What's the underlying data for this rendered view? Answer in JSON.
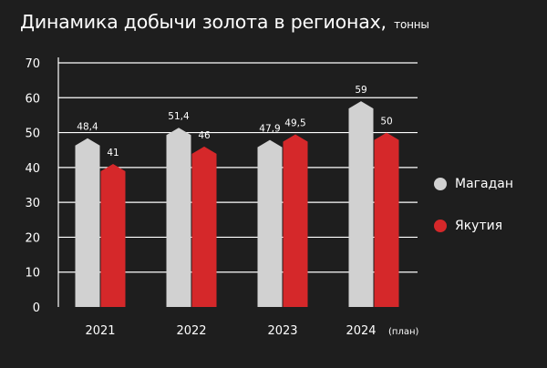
{
  "title": "Динамика добычи золота в регионах,",
  "title_unit": "тонны",
  "legend_items": [
    {
      "label": "Магадан",
      "color": "#d1d1d1"
    },
    {
      "label": "Якутия",
      "color": "#d5282a"
    }
  ],
  "chart_data": {
    "type": "bar",
    "categories": [
      "2021",
      "2022",
      "2023",
      "2024"
    ],
    "category_notes": [
      "",
      "",
      "",
      "(план)"
    ],
    "series": [
      {
        "name": "Магадан",
        "color": "#d1d1d1",
        "values": [
          48.4,
          51.4,
          47.9,
          59
        ],
        "labels": [
          "48,4",
          "51,4",
          "47,9",
          "59"
        ]
      },
      {
        "name": "Якутия",
        "color": "#d5282a",
        "values": [
          41,
          46,
          49.5,
          50
        ],
        "labels": [
          "41",
          "46",
          "49,5",
          "50"
        ]
      }
    ],
    "ylim": [
      0,
      70
    ],
    "yticks": [
      0,
      10,
      20,
      30,
      40,
      50,
      60,
      70
    ],
    "grid": true,
    "legend": "right"
  }
}
